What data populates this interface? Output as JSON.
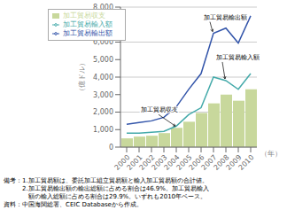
{
  "chart_data": {
    "type": "bar",
    "title": "",
    "xlabel": "（年）",
    "ylabel": "（億ドル）",
    "categories": [
      "2000",
      "2001",
      "2002",
      "2003",
      "2004",
      "2005",
      "2006",
      "2007",
      "2008",
      "2009",
      "2010"
    ],
    "series": [
      {
        "name": "加工貿易収支",
        "type": "bar",
        "color": "#c8d89c",
        "values": [
          500,
          600,
          650,
          800,
          1100,
          1450,
          1950,
          2500,
          3000,
          2650,
          3300
        ]
      },
      {
        "name": "加工貿易輸出額",
        "type": "line",
        "color": "#3355aa",
        "values": [
          1300,
          1400,
          1500,
          1700,
          2300,
          3300,
          4200,
          6500,
          6800,
          5950,
          7500
        ]
      },
      {
        "name": "加工貿易輸入額",
        "type": "line",
        "color": "#44aaaa",
        "values": [
          800,
          800,
          850,
          900,
          1200,
          1850,
          2250,
          4000,
          3800,
          3300,
          4200
        ]
      }
    ],
    "ylim": [
      0,
      8000
    ],
    "yticks": [
      0,
      {
        "value": 1000,
        "label": "1,000"
      },
      {
        "value": 2000,
        "label": "2,000"
      },
      {
        "value": 3000,
        "label": "3,000"
      },
      {
        "value": 4000,
        "label": "4,000"
      },
      {
        "value": 5000,
        "label": "5,000"
      },
      {
        "value": 6000,
        "label": "6,000"
      },
      {
        "value": 7000,
        "label": "7,000"
      },
      {
        "value": 8000,
        "label": "8,000"
      }
    ],
    "grid": true,
    "legend": "upper left",
    "annotations": [
      {
        "text": "加工貿易輸出額",
        "x": "2007",
        "y": 6500
      },
      {
        "text": "加工貿易輸入額",
        "x": "2008",
        "y": 3800
      },
      {
        "text": "加工貿易収支",
        "x": "2004",
        "y": 1100
      }
    ],
    "note": "備考：1.加工貿易額は、委託加工組立貿易額と輸入加工貿易額の合計値。\n　　　2.加工貿易輸出額の輸出総額に占める割合は46.9%。加工貿易輸入\n　　　　額の輸入総額に占める割合は29.9%。いずれも2010年ベース。\n資料：中国海関総署、CEIC Databaseから作成。"
  }
}
